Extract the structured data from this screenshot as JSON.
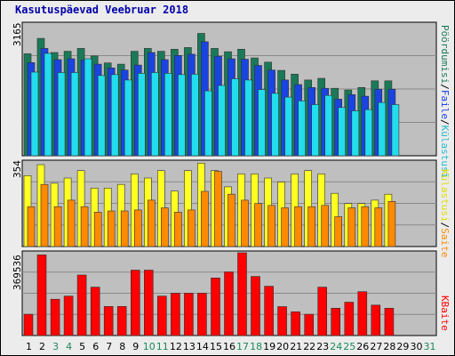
{
  "title": "Kasutuspäevad Veebruar 2018",
  "colors": {
    "plot_bg": "#bfbfbf",
    "grid": "#8a8a8a",
    "visits": "#1a7a58",
    "pages": "#1a44e0",
    "files": "#22ddee",
    "hits": "#ffff22",
    "sites": "#ff8a00",
    "kbytes": "#ff0000",
    "bar_stroke": "#303030",
    "title": "#0000aa",
    "weekday_label": "#000000",
    "weekend_label": "#1a8a5a"
  },
  "chart_data": [
    {
      "type": "bar",
      "panel": "top",
      "y_tick_label": "3165",
      "categories": [
        "1",
        "2",
        "3",
        "4",
        "5",
        "6",
        "7",
        "8",
        "9",
        "10",
        "11",
        "12",
        "13",
        "14",
        "15",
        "16",
        "17",
        "18",
        "19",
        "20",
        "21",
        "22",
        "23",
        "24",
        "25",
        "26",
        "27",
        "28",
        "29",
        "30",
        "31"
      ],
      "weekend_days": [
        "3",
        "4",
        "10",
        "11",
        "17",
        "18",
        "24",
        "25",
        "31"
      ],
      "ylim": [
        0,
        3165
      ],
      "series": [
        {
          "name": "Külastusi",
          "color_key": "visits",
          "values": [
            2450,
            2820,
            2480,
            2510,
            2580,
            2400,
            2230,
            2200,
            2510,
            2580,
            2510,
            2560,
            2600,
            2940,
            2580,
            2500,
            2560,
            2350,
            2250,
            2050,
            1960,
            1820,
            1860,
            1620,
            1580,
            1640,
            1800,
            1800,
            0,
            0,
            0
          ]
        },
        {
          "name": "Faile",
          "color_key": "pages",
          "values": [
            2240,
            2580,
            2310,
            2330,
            2300,
            2200,
            2110,
            2060,
            2180,
            2480,
            2310,
            2410,
            2440,
            2740,
            2390,
            2330,
            2320,
            2170,
            2060,
            1820,
            1710,
            1640,
            1620,
            1360,
            1470,
            1430,
            1600,
            1600,
            0,
            0,
            0
          ]
        },
        {
          "name": "Pöördumisi",
          "color_key": "files",
          "values": [
            2010,
            2460,
            2000,
            2000,
            2330,
            1930,
            1950,
            1820,
            1980,
            2000,
            1980,
            1950,
            1960,
            1560,
            1690,
            1850,
            1820,
            1590,
            1500,
            1410,
            1320,
            1230,
            1450,
            1160,
            1080,
            1110,
            1280,
            1230,
            0,
            0,
            0
          ]
        }
      ]
    },
    {
      "type": "bar",
      "panel": "middle",
      "y_tick_label": "354",
      "categories": [
        "1",
        "2",
        "3",
        "4",
        "5",
        "6",
        "7",
        "8",
        "9",
        "10",
        "11",
        "12",
        "13",
        "14",
        "15",
        "16",
        "17",
        "18",
        "19",
        "20",
        "21",
        "22",
        "23",
        "24",
        "25",
        "26",
        "27",
        "28",
        "29",
        "30",
        "31"
      ],
      "ylim": [
        0,
        354
      ],
      "series": [
        {
          "name": "Külastusi",
          "color_key": "hits",
          "values": [
            297,
            343,
            265,
            287,
            318,
            245,
            245,
            260,
            304,
            287,
            318,
            232,
            318,
            349,
            318,
            250,
            304,
            304,
            287,
            270,
            304,
            318,
            304,
            223,
            180,
            180,
            194,
            219,
            0,
            0,
            0
          ]
        },
        {
          "name": "Saite",
          "color_key": "sites",
          "values": [
            167,
            260,
            167,
            194,
            167,
            144,
            149,
            149,
            153,
            194,
            162,
            144,
            153,
            231,
            315,
            219,
            194,
            180,
            172,
            162,
            167,
            167,
            172,
            125,
            162,
            167,
            162,
            189,
            0,
            0,
            0
          ]
        }
      ]
    },
    {
      "type": "bar",
      "panel": "bottom",
      "y_tick_label": "369536",
      "categories": [
        "1",
        "2",
        "3",
        "4",
        "5",
        "6",
        "7",
        "8",
        "9",
        "10",
        "11",
        "12",
        "13",
        "14",
        "15",
        "16",
        "17",
        "18",
        "19",
        "20",
        "21",
        "22",
        "23",
        "24",
        "25",
        "26",
        "27",
        "28",
        "29",
        "30",
        "31"
      ],
      "ylim": [
        0,
        369536
      ],
      "series": [
        {
          "name": "KBaite",
          "color_key": "kbytes",
          "values": [
            95000,
            360000,
            162000,
            176000,
            270000,
            216000,
            130000,
            130000,
            292000,
            292000,
            176000,
            189000,
            189000,
            189000,
            257000,
            284000,
            369536,
            264000,
            220000,
            129000,
            106000,
            95000,
            216000,
            122000,
            149000,
            196000,
            136000,
            122000,
            0,
            0,
            0
          ]
        }
      ]
    }
  ],
  "right_labels": {
    "top": {
      "visits": "Pöördumisi",
      "files": "Faile",
      "pages": "Külastusi",
      "sep": "/"
    },
    "middle": {
      "sites": "Saite",
      "hits": "Külastusi",
      "sep": "/"
    },
    "bottom": {
      "kbytes": "KBaite"
    }
  }
}
